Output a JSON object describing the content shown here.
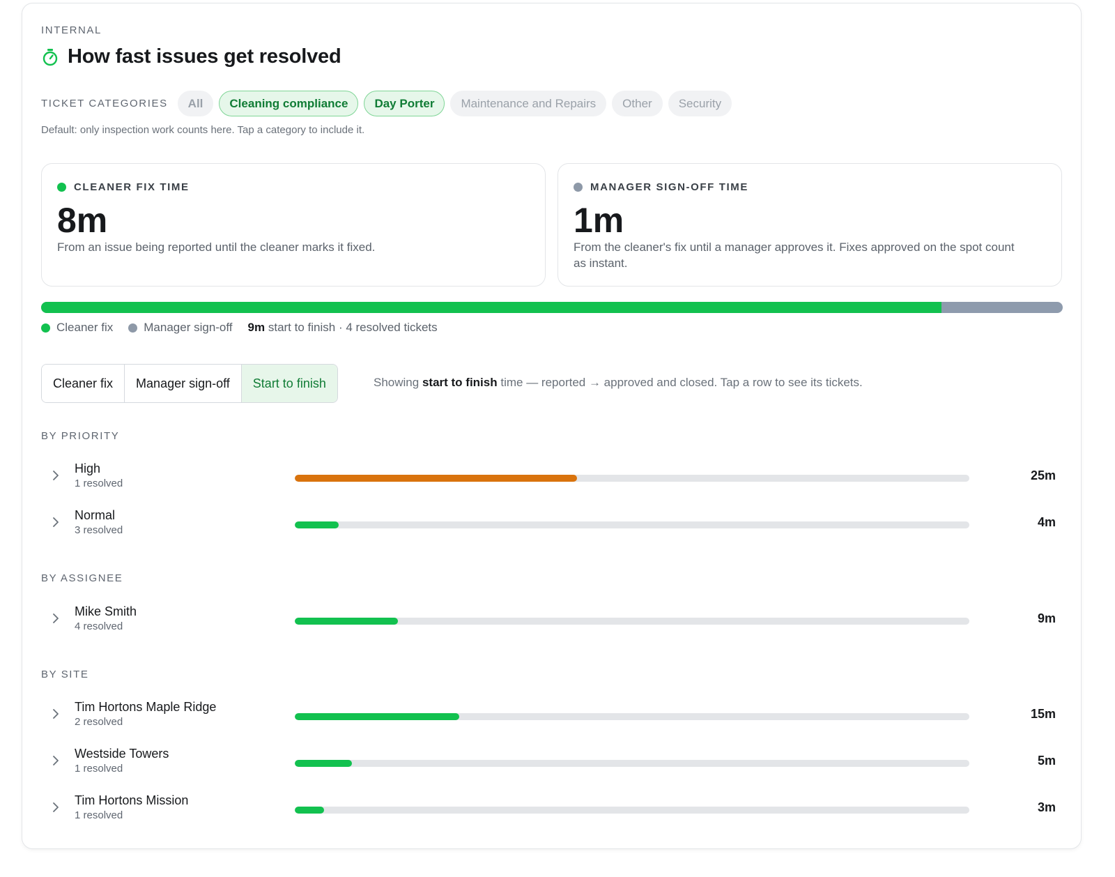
{
  "header": {
    "eyebrow": "INTERNAL",
    "title": "How fast issues get resolved",
    "icon": "stopwatch-icon"
  },
  "categories": {
    "label": "TICKET CATEGORIES",
    "items": [
      {
        "label": "All",
        "selected": false
      },
      {
        "label": "Cleaning compliance",
        "selected": true
      },
      {
        "label": "Day Porter",
        "selected": true
      },
      {
        "label": "Maintenance and Repairs",
        "selected": false
      },
      {
        "label": "Other",
        "selected": false
      },
      {
        "label": "Security",
        "selected": false
      }
    ],
    "hint": "Default: only inspection work counts here. Tap a category to include it."
  },
  "metrics": {
    "cleaner": {
      "label": "CLEANER FIX TIME",
      "value": "8m",
      "description": "From an issue being reported until the cleaner marks it fixed.",
      "color": "#12c14f"
    },
    "manager": {
      "label": "MANAGER SIGN-OFF TIME",
      "value": "1m",
      "description": "From the cleaner's fix until a manager approves it. Fixes approved on the spot count as instant.",
      "color": "#8e99a8"
    }
  },
  "breakdown": {
    "cleaner_fraction": 0.881,
    "legend_cleaner": "Cleaner fix",
    "legend_manager": "Manager sign-off",
    "total_value": "9m",
    "total_suffix": "start to finish · 4 resolved tickets"
  },
  "view_tabs": {
    "items": [
      {
        "label": "Cleaner fix",
        "active": false
      },
      {
        "label": "Manager sign-off",
        "active": false
      },
      {
        "label": "Start to finish",
        "active": true
      }
    ],
    "showing_prefix": "Showing",
    "showing_bold": "start to finish",
    "showing_suffix": "time — reported → approved and closed. Tap a row to see its tickets."
  },
  "sections": [
    {
      "title": "BY PRIORITY",
      "rows": [
        {
          "name": "High",
          "sub": "1 resolved",
          "value": "25m",
          "fraction": 0.418,
          "color": "#d9730d"
        },
        {
          "name": "Normal",
          "sub": "3 resolved",
          "value": "4m",
          "fraction": 0.065,
          "color": "#12c14f"
        }
      ]
    },
    {
      "title": "BY ASSIGNEE",
      "rows": [
        {
          "name": "Mike Smith",
          "sub": "4 resolved",
          "value": "9m",
          "fraction": 0.153,
          "color": "#12c14f"
        }
      ]
    },
    {
      "title": "BY SITE",
      "rows": [
        {
          "name": "Tim Hortons Maple Ridge",
          "sub": "2 resolved",
          "value": "15m",
          "fraction": 0.244,
          "color": "#12c14f"
        },
        {
          "name": "Westside Towers",
          "sub": "1 resolved",
          "value": "5m",
          "fraction": 0.085,
          "color": "#12c14f"
        },
        {
          "name": "Tim Hortons Mission",
          "sub": "1 resolved",
          "value": "3m",
          "fraction": 0.043,
          "color": "#12c14f"
        }
      ]
    }
  ]
}
